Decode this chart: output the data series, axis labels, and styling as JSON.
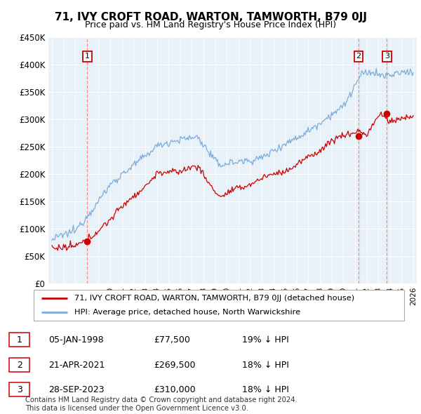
{
  "title": "71, IVY CROFT ROAD, WARTON, TAMWORTH, B79 0JJ",
  "subtitle": "Price paid vs. HM Land Registry's House Price Index (HPI)",
  "ylim": [
    0,
    450000
  ],
  "yticks": [
    0,
    50000,
    100000,
    150000,
    200000,
    250000,
    300000,
    350000,
    400000,
    450000
  ],
  "ytick_labels": [
    "£0",
    "£50K",
    "£100K",
    "£150K",
    "£200K",
    "£250K",
    "£300K",
    "£350K",
    "£400K",
    "£450K"
  ],
  "sale_dates_year": [
    1998.04,
    2021.31,
    2023.74
  ],
  "sale_prices": [
    77500,
    269500,
    310000
  ],
  "sale_labels": [
    "1",
    "2",
    "3"
  ],
  "legend_red": "71, IVY CROFT ROAD, WARTON, TAMWORTH, B79 0JJ (detached house)",
  "legend_blue": "HPI: Average price, detached house, North Warwickshire",
  "table_rows": [
    [
      "1",
      "05-JAN-1998",
      "£77,500",
      "19% ↓ HPI"
    ],
    [
      "2",
      "21-APR-2021",
      "£269,500",
      "18% ↓ HPI"
    ],
    [
      "3",
      "28-SEP-2023",
      "£310,000",
      "18% ↓ HPI"
    ]
  ],
  "footer": "Contains HM Land Registry data © Crown copyright and database right 2024.\nThis data is licensed under the Open Government Licence v3.0.",
  "red_color": "#cc0000",
  "blue_color": "#7aaddb",
  "dashed_color": "#ff8888",
  "chart_bg": "#e8f0f8",
  "grid_color": "#ffffff"
}
